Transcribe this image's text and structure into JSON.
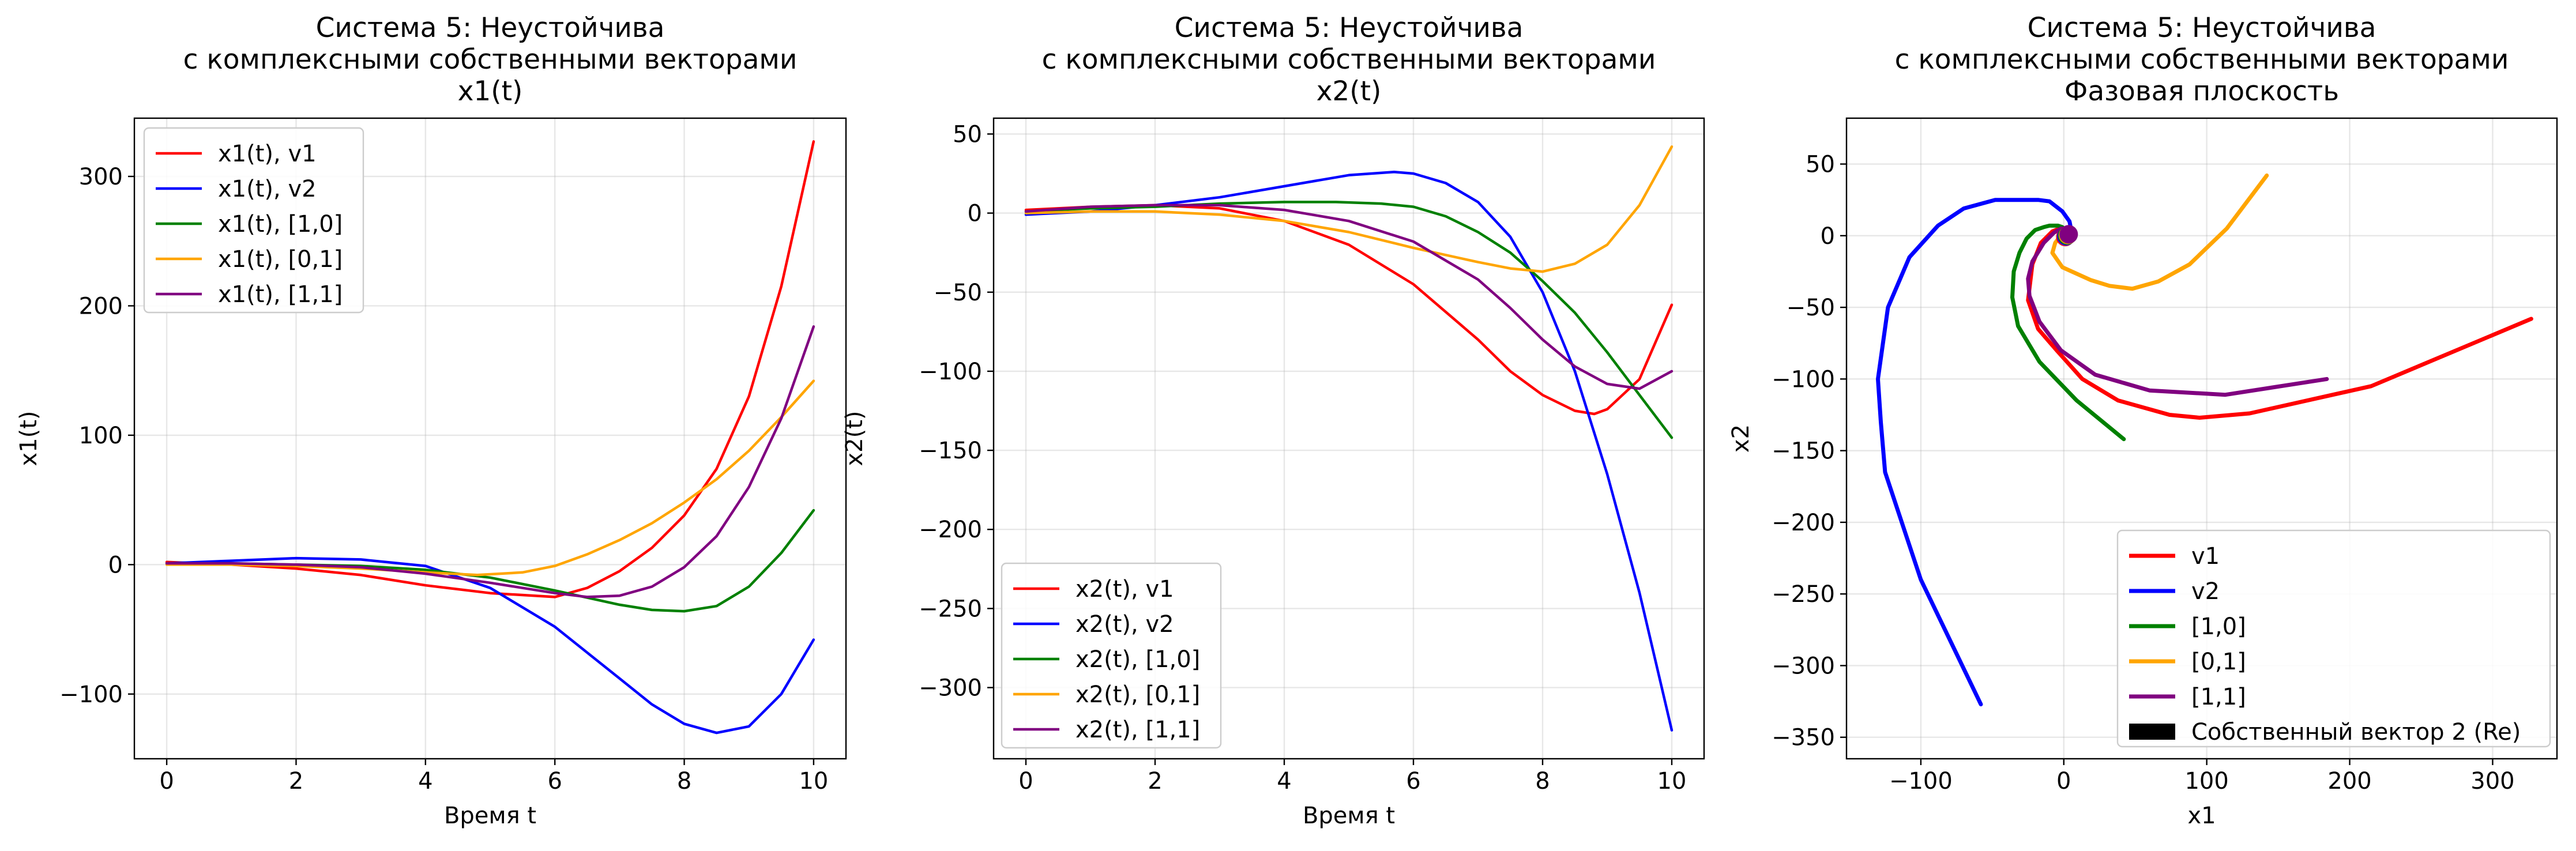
{
  "chart_data": [
    {
      "type": "line",
      "title": [
        "Система 5: Неустойчива",
        "с комплексными собственными векторами",
        "x1(t)"
      ],
      "xlabel": "Время t",
      "ylabel": "x1(t)",
      "xlim": [
        -0.5,
        10.5
      ],
      "ylim": [
        -150,
        345
      ],
      "xticks": [
        0,
        2,
        4,
        6,
        8,
        10
      ],
      "yticks": [
        -100,
        0,
        100,
        200,
        300
      ],
      "grid": true,
      "legend": "top-left",
      "series": [
        {
          "name": "x1(t), v1",
          "color": "#ff0000",
          "x": [
            0,
            1,
            2,
            3,
            4,
            5,
            6,
            6.5,
            7,
            7.5,
            8,
            8.5,
            9,
            9.5,
            10
          ],
          "y": [
            2,
            0,
            -3,
            -8,
            -16,
            -22,
            -25,
            -18,
            -5,
            13,
            38,
            74,
            130,
            215,
            327
          ]
        },
        {
          "name": "x1(t), v2",
          "color": "#0000ff",
          "x": [
            0,
            1,
            2,
            3,
            4,
            5,
            6,
            7,
            7.5,
            8,
            8.5,
            9,
            9.5,
            10
          ],
          "y": [
            1,
            3,
            5,
            4,
            -1,
            -18,
            -48,
            -88,
            -108,
            -123,
            -130,
            -125,
            -100,
            -58
          ]
        },
        {
          "name": "x1(t), [1,0]",
          "color": "#008000",
          "x": [
            0,
            1,
            2,
            3,
            4,
            5,
            6,
            7,
            7.5,
            8,
            8.5,
            9,
            9.5,
            10
          ],
          "y": [
            1,
            1,
            0,
            -1,
            -4,
            -10,
            -20,
            -31,
            -35,
            -36,
            -32,
            -17,
            9,
            42
          ]
        },
        {
          "name": "x1(t), [0,1]",
          "color": "#ffa500",
          "x": [
            0,
            1,
            2,
            3,
            4,
            4.8,
            5.5,
            6,
            6.5,
            7,
            7.5,
            8,
            8.5,
            9,
            9.5,
            10
          ],
          "y": [
            0,
            0,
            -1,
            -3,
            -6,
            -8,
            -6,
            -1,
            8,
            19,
            32,
            48,
            66,
            88,
            114,
            142
          ]
        },
        {
          "name": "x1(t), [1,1]",
          "color": "#800080",
          "x": [
            0,
            1,
            2,
            3,
            4,
            5,
            6,
            6.5,
            7,
            7.5,
            8,
            8.5,
            9,
            9.5,
            10
          ],
          "y": [
            1,
            1,
            0,
            -2,
            -7,
            -14,
            -22,
            -25,
            -24,
            -17,
            -2,
            22,
            60,
            113,
            184
          ]
        }
      ]
    },
    {
      "type": "line",
      "title": [
        "Система 5: Неустойчива",
        "с комплексными собственными векторами",
        "x2(t)"
      ],
      "xlabel": "Время t",
      "ylabel": "x2(t)",
      "xlim": [
        -0.5,
        10.5
      ],
      "ylim": [
        -345,
        60
      ],
      "xticks": [
        0,
        2,
        4,
        6,
        8,
        10
      ],
      "yticks": [
        -300,
        -250,
        -200,
        -150,
        -100,
        -50,
        0,
        50
      ],
      "grid": true,
      "legend": "bottom-left",
      "series": [
        {
          "name": "x2(t), v1",
          "color": "#ff0000",
          "x": [
            0,
            1,
            2,
            3,
            4,
            5,
            6,
            7,
            7.5,
            8,
            8.5,
            8.8,
            9,
            9.5,
            10
          ],
          "y": [
            2,
            4,
            5,
            3,
            -5,
            -20,
            -45,
            -80,
            -100,
            -115,
            -125,
            -127,
            -124,
            -105,
            -58
          ]
        },
        {
          "name": "x2(t), v2",
          "color": "#0000ff",
          "x": [
            0,
            1,
            2,
            3,
            4,
            5,
            5.7,
            6,
            6.5,
            7,
            7.5,
            8,
            8.5,
            9,
            9.5,
            10
          ],
          "y": [
            -1,
            1,
            5,
            10,
            17,
            24,
            26,
            25,
            19,
            7,
            -15,
            -50,
            -100,
            -165,
            -240,
            -327
          ]
        },
        {
          "name": "x2(t), [1,0]",
          "color": "#008000",
          "x": [
            0,
            1,
            2,
            3,
            4,
            4.8,
            5.5,
            6,
            6.5,
            7,
            7.5,
            8,
            8.5,
            9,
            9.5,
            10
          ],
          "y": [
            1,
            3,
            4,
            6,
            7,
            7,
            6,
            4,
            -2,
            -12,
            -25,
            -43,
            -63,
            -88,
            -115,
            -142
          ]
        },
        {
          "name": "x2(t), [0,1]",
          "color": "#ffa500",
          "x": [
            0,
            1,
            2,
            3,
            4,
            5,
            6,
            7,
            7.5,
            8,
            8.5,
            9,
            9.5,
            10
          ],
          "y": [
            0,
            1,
            1,
            -1,
            -5,
            -12,
            -22,
            -31,
            -35,
            -37,
            -32,
            -20,
            5,
            42
          ]
        },
        {
          "name": "x2(t), [1,1]",
          "color": "#800080",
          "x": [
            0,
            1,
            2,
            3,
            4,
            5,
            6,
            7,
            7.5,
            8,
            8.5,
            9,
            9.5,
            10
          ],
          "y": [
            1,
            4,
            5,
            5,
            2,
            -5,
            -18,
            -42,
            -60,
            -80,
            -97,
            -108,
            -111,
            -100
          ]
        }
      ]
    },
    {
      "type": "line",
      "title": [
        "Система 5: Неустойчива",
        "с комплексными собственными векторами",
        "Фазовая плоскость"
      ],
      "xlabel": "x1",
      "ylabel": "x2",
      "xlim": [
        -152,
        345
      ],
      "ylim": [
        -365,
        82
      ],
      "xticks": [
        -100,
        0,
        100,
        200,
        300
      ],
      "yticks": [
        -350,
        -300,
        -250,
        -200,
        -150,
        -100,
        -50,
        0,
        50
      ],
      "grid": true,
      "legend": "bottom-right",
      "series": [
        {
          "name": "v1",
          "color": "#ff0000",
          "x": [
            2,
            0,
            -3,
            -8,
            -16,
            -22,
            -25,
            -18,
            -5,
            13,
            38,
            74,
            95,
            130,
            215,
            327
          ],
          "y": [
            2,
            4,
            5,
            3,
            -5,
            -20,
            -45,
            -65,
            -80,
            -100,
            -115,
            -125,
            -127,
            -124,
            -105,
            -58
          ]
        },
        {
          "name": "v2",
          "color": "#0000ff",
          "x": [
            1,
            3,
            5,
            4,
            -1,
            -10,
            -18,
            -48,
            -70,
            -88,
            -108,
            -123,
            -130,
            -128,
            -125,
            -110,
            -100,
            -58
          ],
          "y": [
            -1,
            1,
            5,
            10,
            17,
            24,
            25,
            25,
            19,
            7,
            -15,
            -50,
            -100,
            -130,
            -165,
            -210,
            -240,
            -327
          ]
        },
        {
          "name": "[1,0]",
          "color": "#008000",
          "x": [
            1,
            1,
            0,
            -1,
            -4,
            -10,
            -14,
            -20,
            -26,
            -31,
            -35,
            -36,
            -32,
            -17,
            9,
            42
          ],
          "y": [
            1,
            3,
            4,
            6,
            7,
            7,
            6,
            4,
            -2,
            -12,
            -25,
            -43,
            -63,
            -88,
            -115,
            -142
          ]
        },
        {
          "name": "[0,1]",
          "color": "#ffa500",
          "x": [
            0,
            0,
            -1,
            -3,
            -6,
            -8,
            -1,
            19,
            32,
            48,
            66,
            88,
            114,
            142
          ],
          "y": [
            0,
            1,
            1,
            -1,
            -5,
            -12,
            -22,
            -31,
            -35,
            -37,
            -32,
            -20,
            5,
            42
          ]
        },
        {
          "name": "[1,1]",
          "color": "#800080",
          "x": [
            1,
            1,
            0,
            -2,
            -7,
            -14,
            -22,
            -25,
            -24,
            -17,
            -2,
            22,
            60,
            113,
            184
          ],
          "y": [
            1,
            4,
            5,
            5,
            2,
            -5,
            -18,
            -30,
            -42,
            -60,
            -80,
            -97,
            -108,
            -111,
            -100
          ]
        }
      ],
      "eigenvector_legend": {
        "name": "Собственный вектор 2 (Re)",
        "color": "#000000"
      },
      "eigenvector_marker": {
        "x": 1,
        "y": -1,
        "colors": [
          "#ff0000",
          "#0000ff",
          "#008000",
          "#ffa500",
          "#800080"
        ]
      }
    }
  ]
}
